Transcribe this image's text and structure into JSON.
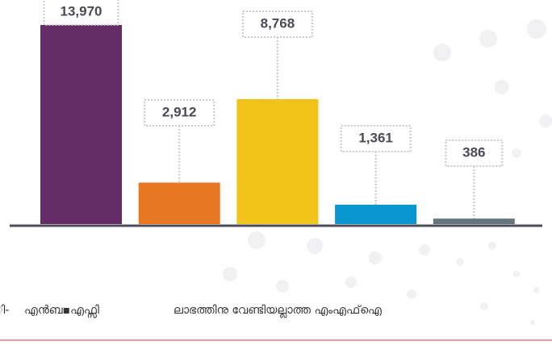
{
  "chart_data": {
    "type": "bar",
    "categories": [
      null,
      null,
      null,
      null,
      null
    ],
    "values": [
      13970,
      2912,
      8768,
      1361,
      386
    ],
    "value_labels": [
      "13,970",
      "2,912",
      "8,768",
      "1,361",
      "386"
    ],
    "colors": [
      "#652d67",
      "#e87722",
      "#f2c31b",
      "#0a96d0",
      "#66757d"
    ],
    "legend_labels": [
      "ി-",
      "എൻബ▪എഫ്സി",
      "ലാഭത്തിനു വേണ്ടിയല്ലാത്ത എംഎഫ്ഐ"
    ]
  }
}
